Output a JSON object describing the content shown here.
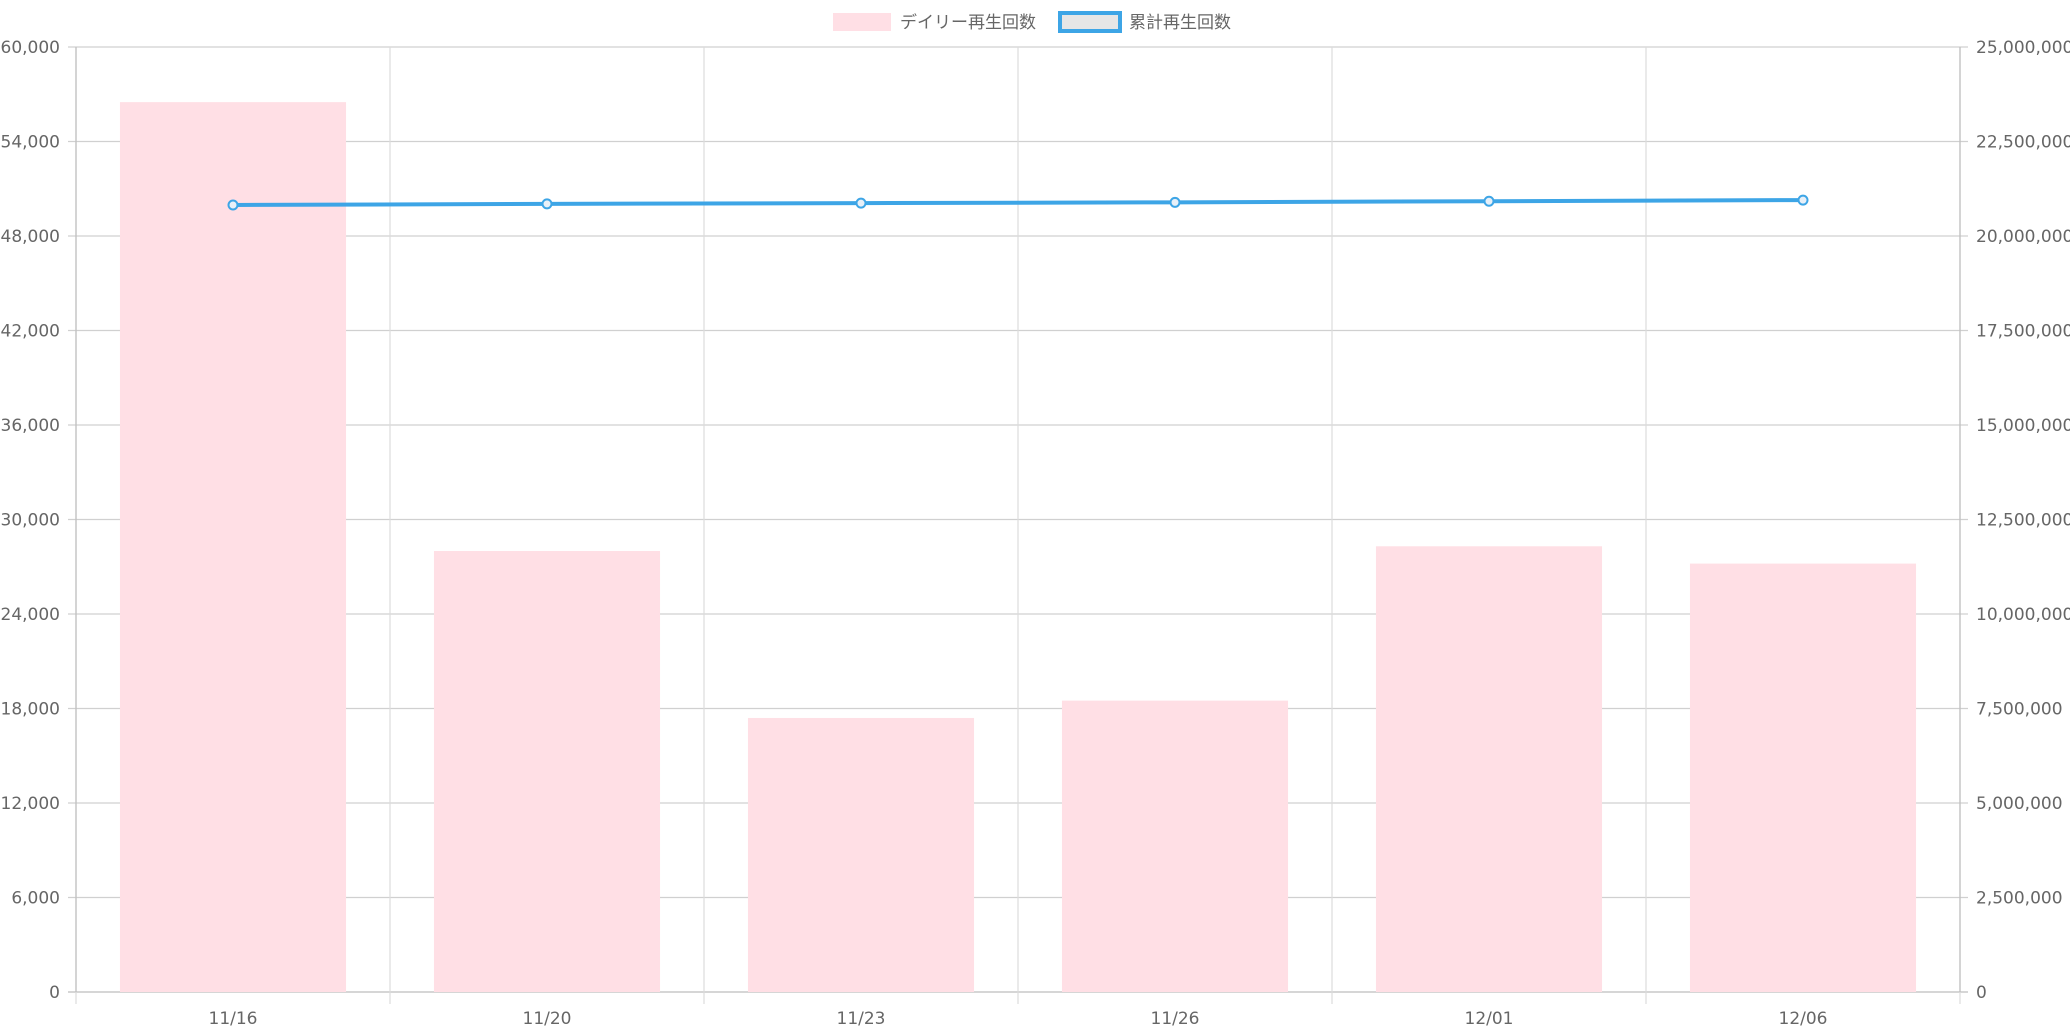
{
  "chart_data": {
    "type": "bar",
    "categories": [
      "11/16",
      "11/20",
      "11/23",
      "11/26",
      "12/01",
      "12/06"
    ],
    "series": [
      {
        "name": "デイリー再生回数",
        "type": "bar",
        "axis": "left",
        "values": [
          56500,
          28000,
          17400,
          18500,
          28300,
          27200
        ],
        "color": "#ffdfe5"
      },
      {
        "name": "累計再生回数",
        "type": "line",
        "axis": "right",
        "values": [
          20820000,
          20850000,
          20870000,
          20890000,
          20920000,
          20950000
        ],
        "color": "#3da5e6"
      }
    ],
    "y_left": {
      "ylim": [
        0,
        60000
      ],
      "ticks": [
        "60,000",
        "54,000",
        "48,000",
        "42,000",
        "36,000",
        "30,000",
        "24,000",
        "18,000",
        "12,000",
        "6,000",
        "0"
      ]
    },
    "y_right": {
      "ylim": [
        0,
        25000000
      ],
      "ticks": [
        "25,000,000",
        "22,500,000",
        "20,000,000",
        "17,500,000",
        "15,000,000",
        "12,500,000",
        "10,000,000",
        "7,500,000",
        "5,000,000",
        "2,500,000",
        "0"
      ]
    },
    "grid": true,
    "legend_position": "top"
  }
}
